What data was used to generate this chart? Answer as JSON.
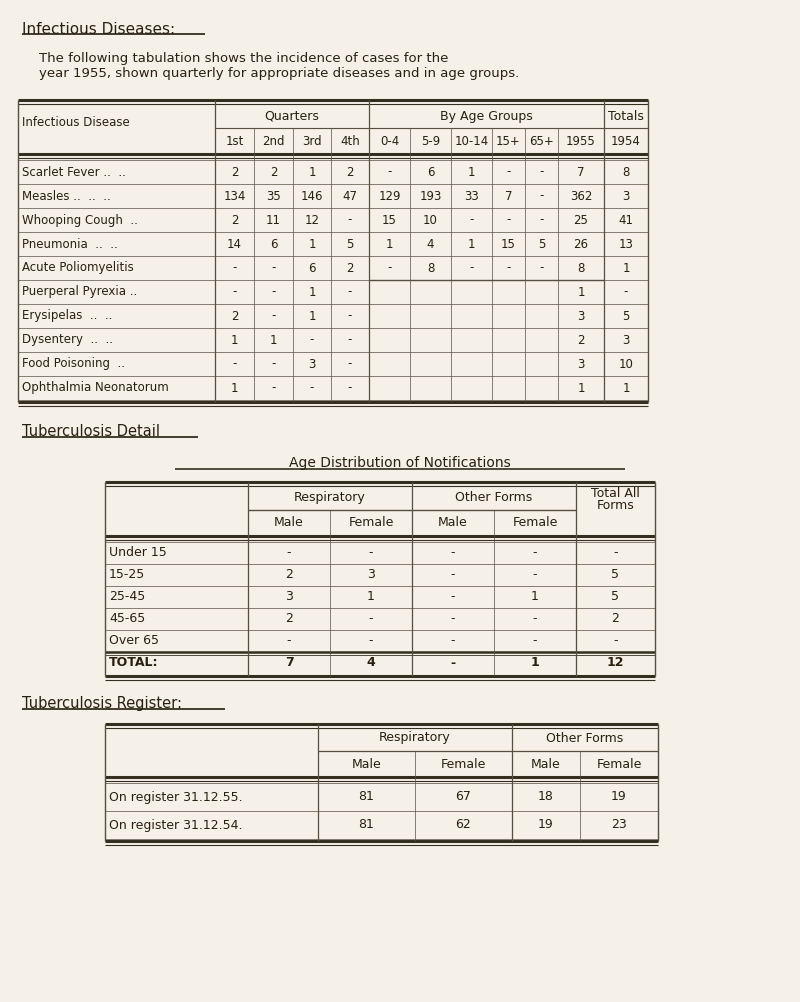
{
  "bg_color": "#f5f0e8",
  "title": "Infectious Diseases:",
  "subtitle_line1": "    The following tabulation shows the incidence of cases for the",
  "subtitle_line2": "    year 1955, shown quarterly for appropriate diseases and in age groups.",
  "table1_rows": [
    [
      "Scarlet Fever ..  ..",
      "2",
      "2",
      "1",
      "2",
      "-",
      "6",
      "1",
      "-",
      "-",
      "7",
      "8"
    ],
    [
      "Measles ..  ..  ..",
      "134",
      "35",
      "146",
      "47",
      "129",
      "193",
      "33",
      "7",
      "-",
      "362",
      "3"
    ],
    [
      "Whooping Cough  ..",
      "2",
      "11",
      "12",
      "-",
      "15",
      "10",
      "-",
      "-",
      "-",
      "25",
      "41"
    ],
    [
      "Pneumonia  ..  ..",
      "14",
      "6",
      "1",
      "5",
      "1",
      "4",
      "1",
      "15",
      "5",
      "26",
      "13"
    ],
    [
      "Acute Poliomyelitis",
      "-",
      "-",
      "6",
      "2",
      "-",
      "8",
      "-",
      "-",
      "-",
      "8",
      "1"
    ],
    [
      "Puerperal Pyrexia ..",
      "-",
      "-",
      "1",
      "-",
      "",
      "",
      "",
      "",
      "",
      "1",
      "-"
    ],
    [
      "Erysipelas  ..  ..",
      "2",
      "-",
      "1",
      "-",
      "",
      "",
      "",
      "",
      "",
      "3",
      "5"
    ],
    [
      "Dysentery  ..  ..",
      "1",
      "1",
      "-",
      "-",
      "",
      "",
      "",
      "",
      "",
      "2",
      "3"
    ],
    [
      "Food Poisoning  ..",
      "-",
      "-",
      "3",
      "-",
      "",
      "",
      "",
      "",
      "",
      "3",
      "10"
    ],
    [
      "Ophthalmia Neonatorum",
      "1",
      "-",
      "-",
      "-",
      "",
      "",
      "",
      "",
      "",
      "1",
      "1"
    ]
  ],
  "table2_rows": [
    [
      "Under 15",
      "-",
      "-",
      "-",
      "-",
      "-"
    ],
    [
      "15-25",
      "2",
      "3",
      "-",
      "-",
      "5"
    ],
    [
      "25-45",
      "3",
      "1",
      "-",
      "1",
      "5"
    ],
    [
      "45-65",
      "2",
      "-",
      "-",
      "-",
      "2"
    ],
    [
      "Over 65",
      "-",
      "-",
      "-",
      "-",
      "-"
    ],
    [
      "TOTAL:",
      "7",
      "4",
      "-",
      "1",
      "12"
    ]
  ],
  "table3_rows": [
    [
      "On register 31.12.55.",
      "81",
      "67",
      "18",
      "19"
    ],
    [
      "On register 31.12.54.",
      "81",
      "62",
      "19",
      "23"
    ]
  ],
  "text_color": "#2a2010",
  "line_color": "#555040",
  "heavy_line_color": "#333020"
}
